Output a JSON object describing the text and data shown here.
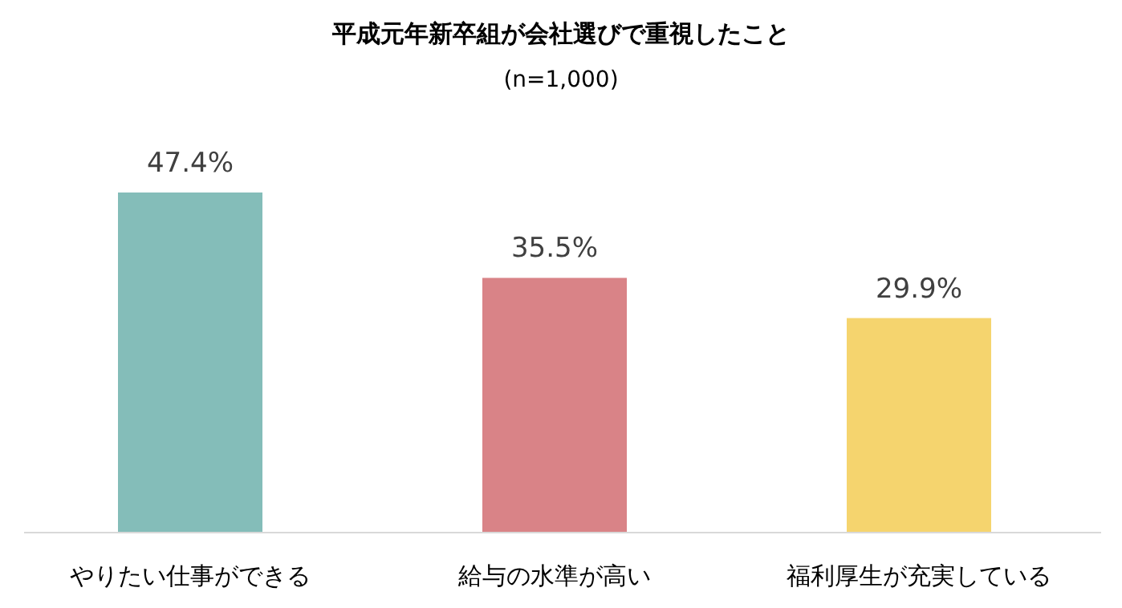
{
  "chart_data": {
    "type": "bar",
    "title": "平成元年新卒組が会社選びで重視したこと",
    "subtitle": "(n=1,000)",
    "categories": [
      "やりたい仕事ができる",
      "給与の水準が高い",
      "福利厚生が充実している"
    ],
    "values": [
      47.4,
      35.5,
      29.9
    ],
    "colors": [
      "#84bdb9",
      "#d98387",
      "#f5d46e"
    ],
    "value_labels": [
      "47.4%",
      "35.5%",
      "29.9%"
    ]
  }
}
